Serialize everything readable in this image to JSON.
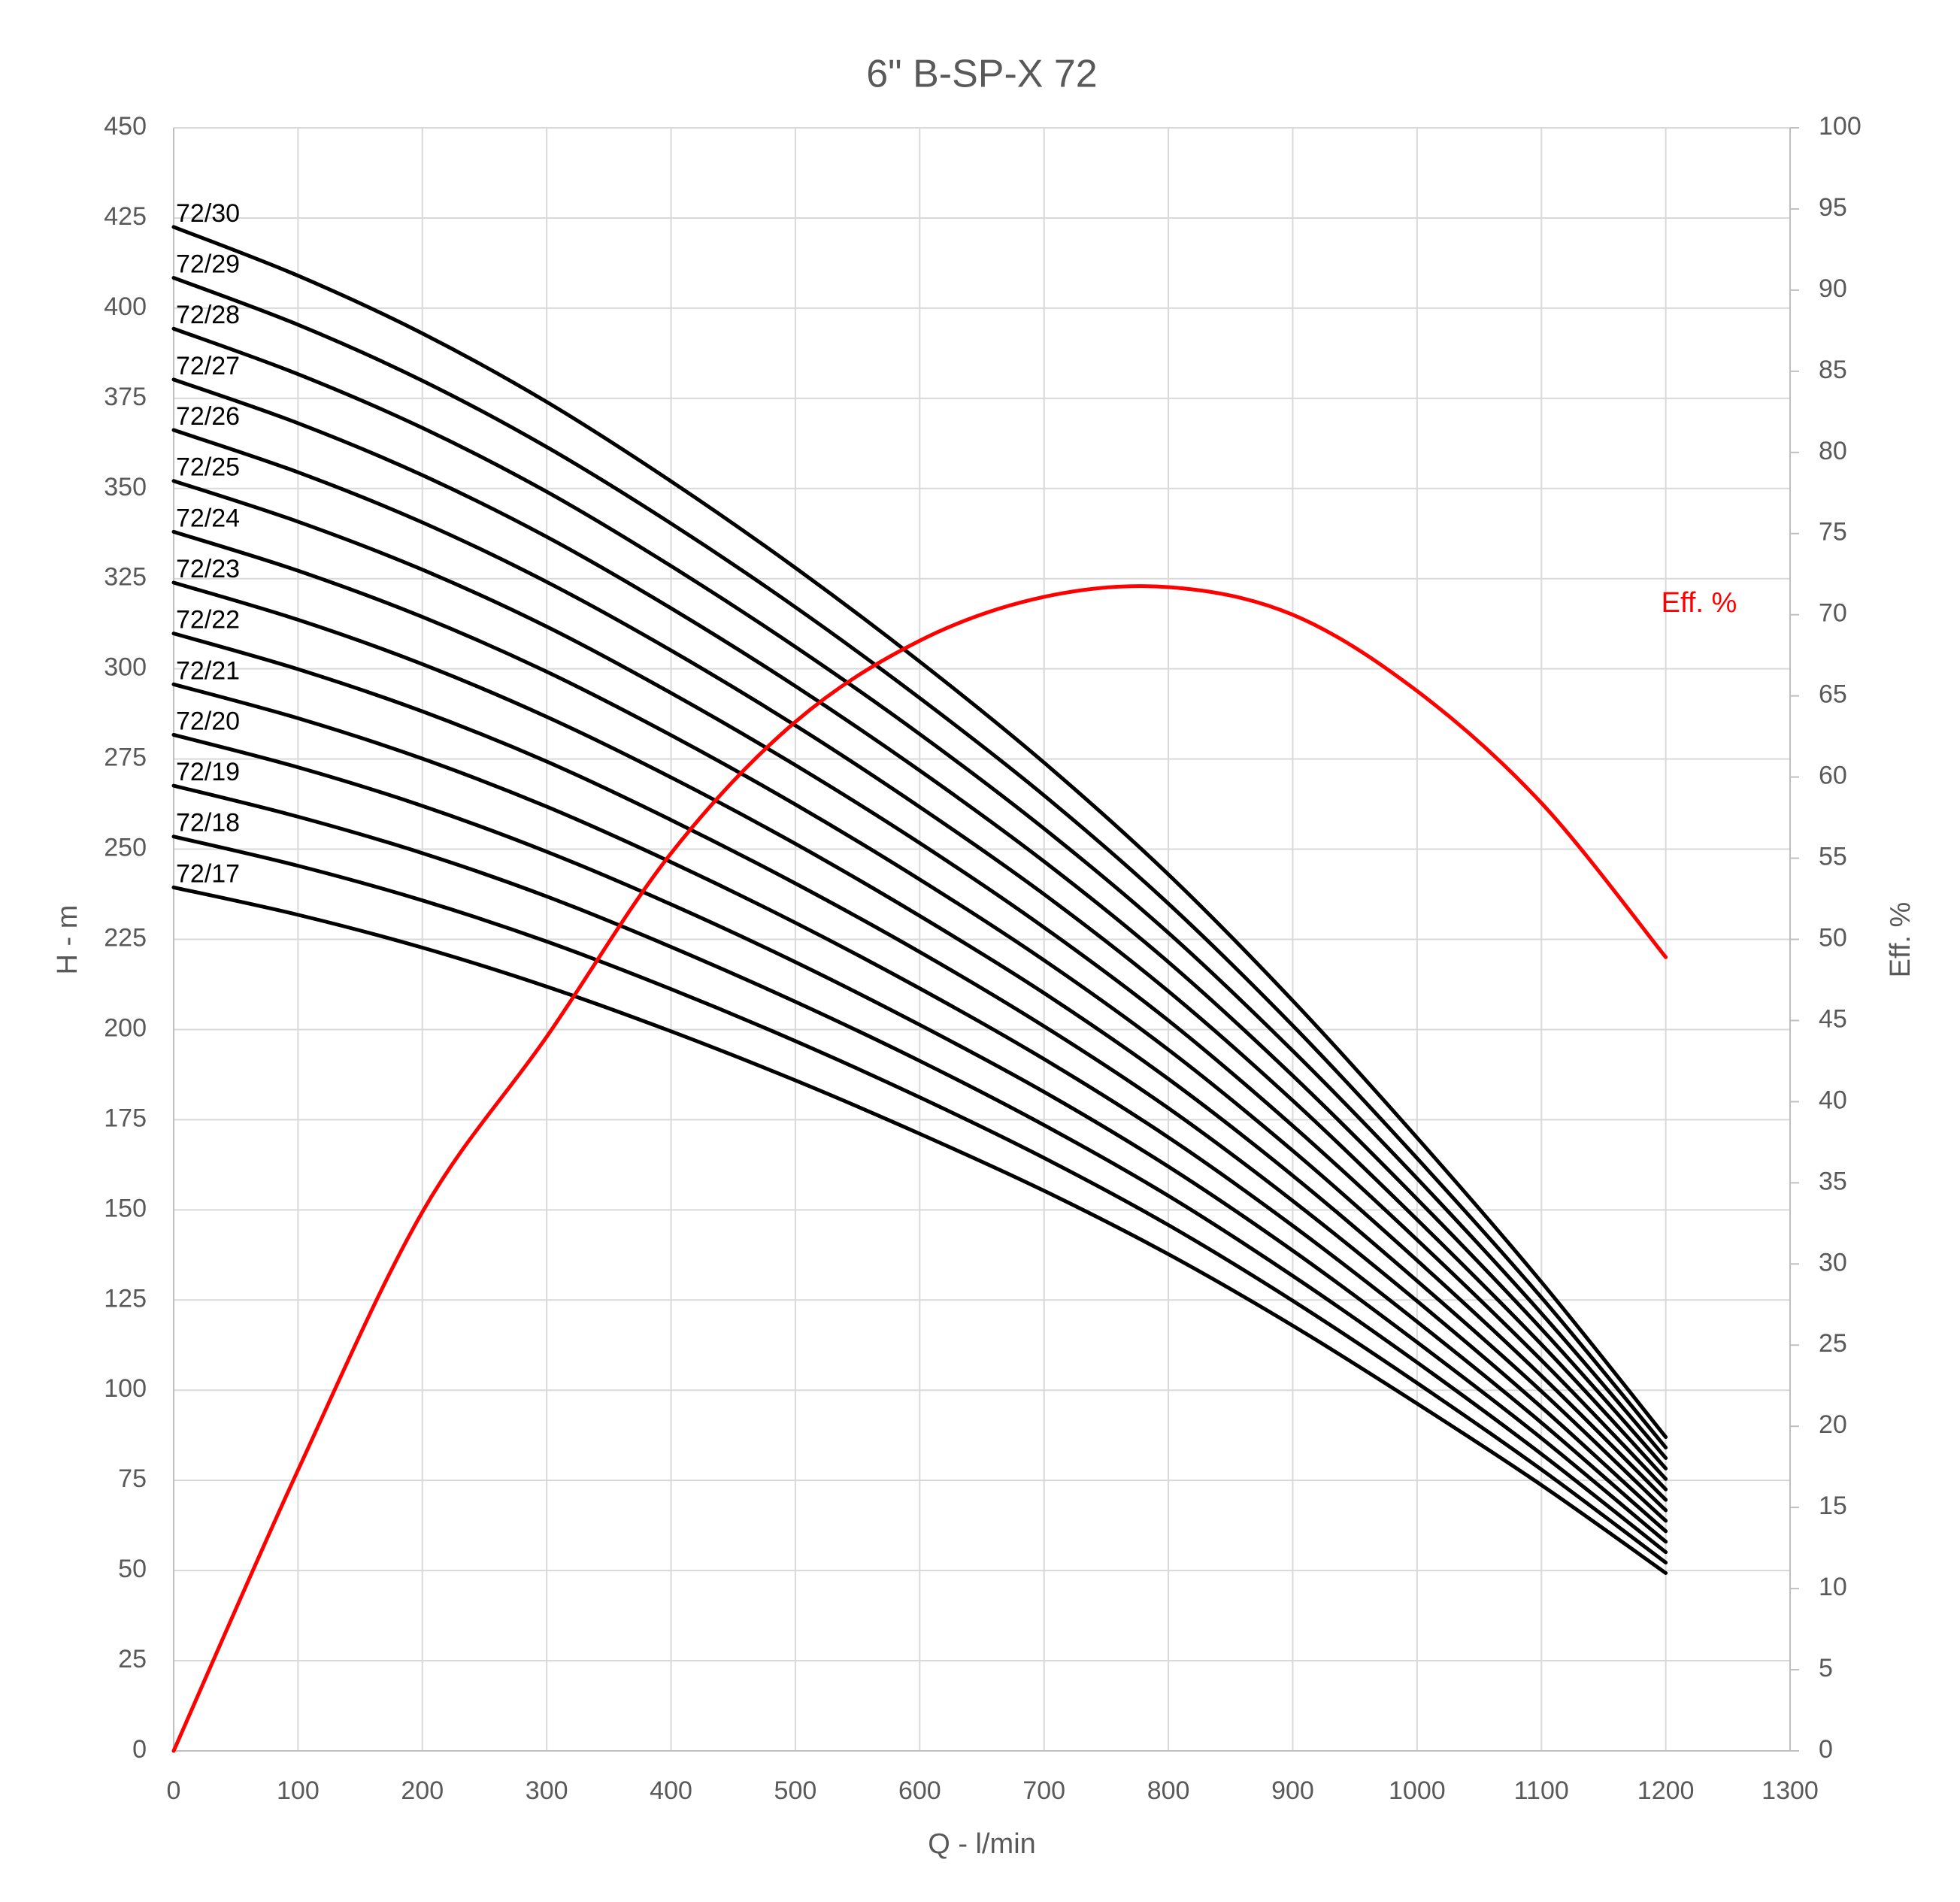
{
  "chart_data": {
    "type": "line",
    "title": "6\" B-SP-X 72",
    "x_label": "Q - l/min",
    "y_label": "H - m",
    "y2_label": "Eff. %",
    "x": [
      0,
      100,
      200,
      300,
      400,
      500,
      600,
      700,
      800,
      900,
      1000,
      1100,
      1200
    ],
    "xlim": [
      0,
      1300
    ],
    "xticks": [
      0,
      100,
      200,
      300,
      400,
      500,
      600,
      700,
      800,
      900,
      1000,
      1100,
      1200,
      1300
    ],
    "ylim": [
      0,
      450
    ],
    "yticks": [
      0,
      25,
      50,
      75,
      100,
      125,
      150,
      175,
      200,
      225,
      250,
      275,
      300,
      325,
      350,
      375,
      400,
      425,
      450
    ],
    "y2lim": [
      0,
      100
    ],
    "y2ticks": [
      0,
      5,
      10,
      15,
      20,
      25,
      30,
      35,
      40,
      45,
      50,
      55,
      60,
      65,
      70,
      75,
      80,
      85,
      90,
      95,
      100
    ],
    "grid": true,
    "series": [
      {
        "name": "72/17",
        "color": "#000000",
        "values": [
          239.4,
          231.8,
          222.7,
          211.9,
          199.5,
          185.9,
          171.1,
          155.3,
          137.7,
          117.9,
          96.3,
          73.7,
          49.3
        ]
      },
      {
        "name": "72/18",
        "color": "#000000",
        "values": [
          253.5,
          245.4,
          235.8,
          224.4,
          211.2,
          196.8,
          181.2,
          164.4,
          145.8,
          124.8,
          102.0,
          78.0,
          52.2
        ]
      },
      {
        "name": "72/19",
        "color": "#000000",
        "values": [
          267.6,
          259.0,
          248.9,
          236.9,
          222.9,
          207.7,
          191.3,
          173.5,
          153.9,
          131.7,
          107.7,
          82.3,
          55.1
        ]
      },
      {
        "name": "72/20",
        "color": "#000000",
        "values": [
          281.7,
          272.7,
          262.0,
          249.3,
          234.7,
          218.7,
          201.3,
          182.7,
          162.0,
          138.7,
          113.3,
          86.7,
          58.0
        ]
      },
      {
        "name": "72/21",
        "color": "#000000",
        "values": [
          295.7,
          286.3,
          275.1,
          261.8,
          246.4,
          229.6,
          211.4,
          191.8,
          170.1,
          145.6,
          119.0,
          91.0,
          60.9
        ]
      },
      {
        "name": "72/22",
        "color": "#000000",
        "values": [
          309.8,
          299.9,
          288.2,
          274.3,
          258.1,
          240.5,
          221.5,
          200.9,
          178.2,
          152.5,
          124.7,
          95.3,
          63.8
        ]
      },
      {
        "name": "72/23",
        "color": "#000000",
        "values": [
          323.9,
          313.6,
          301.3,
          286.7,
          269.9,
          251.5,
          231.5,
          210.1,
          186.3,
          159.5,
          130.3,
          99.7,
          66.7
        ]
      },
      {
        "name": "72/24",
        "color": "#000000",
        "values": [
          338.0,
          327.2,
          314.4,
          299.2,
          281.6,
          262.4,
          241.6,
          219.2,
          194.4,
          166.4,
          136.0,
          104.0,
          69.6
        ]
      },
      {
        "name": "72/25",
        "color": "#000000",
        "values": [
          352.1,
          340.8,
          327.5,
          311.7,
          293.3,
          273.3,
          251.7,
          228.3,
          202.5,
          173.3,
          141.7,
          108.3,
          72.5
        ]
      },
      {
        "name": "72/26",
        "color": "#000000",
        "values": [
          366.2,
          354.5,
          340.6,
          324.1,
          305.1,
          284.3,
          261.7,
          237.5,
          210.6,
          180.3,
          147.3,
          112.7,
          75.4
        ]
      },
      {
        "name": "72/27",
        "color": "#000000",
        "values": [
          380.2,
          368.1,
          353.7,
          336.6,
          316.8,
          295.2,
          271.8,
          246.6,
          218.7,
          187.2,
          153.0,
          117.0,
          78.3
        ]
      },
      {
        "name": "72/28",
        "color": "#000000",
        "values": [
          394.3,
          381.7,
          366.8,
          349.1,
          328.5,
          306.1,
          281.9,
          255.7,
          226.8,
          194.1,
          158.7,
          121.3,
          81.2
        ]
      },
      {
        "name": "72/29",
        "color": "#000000",
        "values": [
          408.4,
          395.4,
          379.9,
          361.5,
          340.3,
          317.1,
          291.9,
          264.9,
          234.9,
          201.1,
          164.3,
          125.7,
          84.1
        ]
      },
      {
        "name": "72/30",
        "color": "#000000",
        "values": [
          422.5,
          409.0,
          393.0,
          374.0,
          352.0,
          328.0,
          302.0,
          274.0,
          243.0,
          208.0,
          170.0,
          130.0,
          87.0
        ]
      },
      {
        "name": "Eff. %",
        "color": "#ff0000",
        "axis": "y2",
        "values": [
          0,
          17.3,
          33.2,
          44.0,
          55.3,
          63.4,
          68.4,
          71.1,
          71.7,
          70.0,
          65.3,
          58.4,
          48.9
        ]
      }
    ]
  }
}
